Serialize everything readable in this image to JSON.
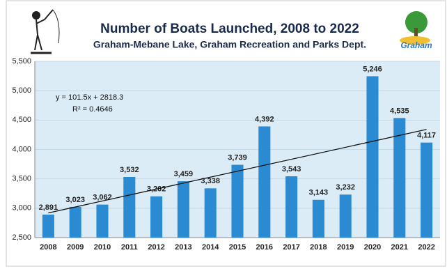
{
  "chart_data": {
    "type": "bar",
    "title": "Number of Boats Launched, 2008 to 2022",
    "subtitle": "Graham-Mebane Lake, Graham Recreation and Parks Dept.",
    "logo_text": "Graham",
    "categories": [
      "2008",
      "2009",
      "2010",
      "2011",
      "2012",
      "2013",
      "2014",
      "2015",
      "2016",
      "2017",
      "2018",
      "2019",
      "2020",
      "2021",
      "2022"
    ],
    "values": [
      2891,
      3023,
      3062,
      3532,
      3202,
      3459,
      3338,
      3739,
      4392,
      3543,
      3143,
      3232,
      5246,
      4535,
      4117
    ],
    "value_labels": [
      "2,891",
      "3,023",
      "3,062",
      "3,532",
      "3,202",
      "3,459",
      "3,338",
      "3,739",
      "4,392",
      "3,543",
      "3,143",
      "3,232",
      "5,246",
      "4,535",
      "4,117"
    ],
    "color": "#2a8bd2",
    "ylim": [
      2500,
      5500
    ],
    "yticks": [
      {
        "value": 2500,
        "label": "2,500"
      },
      {
        "value": 3000,
        "label": "3,000"
      },
      {
        "value": 3500,
        "label": "3,500"
      },
      {
        "value": 4000,
        "label": "4,000"
      },
      {
        "value": 4500,
        "label": "4,500"
      },
      {
        "value": 5000,
        "label": "5,000"
      },
      {
        "value": 5500,
        "label": "5,500"
      }
    ],
    "grid": true,
    "trendline": {
      "label": "y = 101.5x + 2818.3",
      "r2_label": "R² = 0.4646",
      "slope": 101.5,
      "intercept": 2818.3
    }
  }
}
